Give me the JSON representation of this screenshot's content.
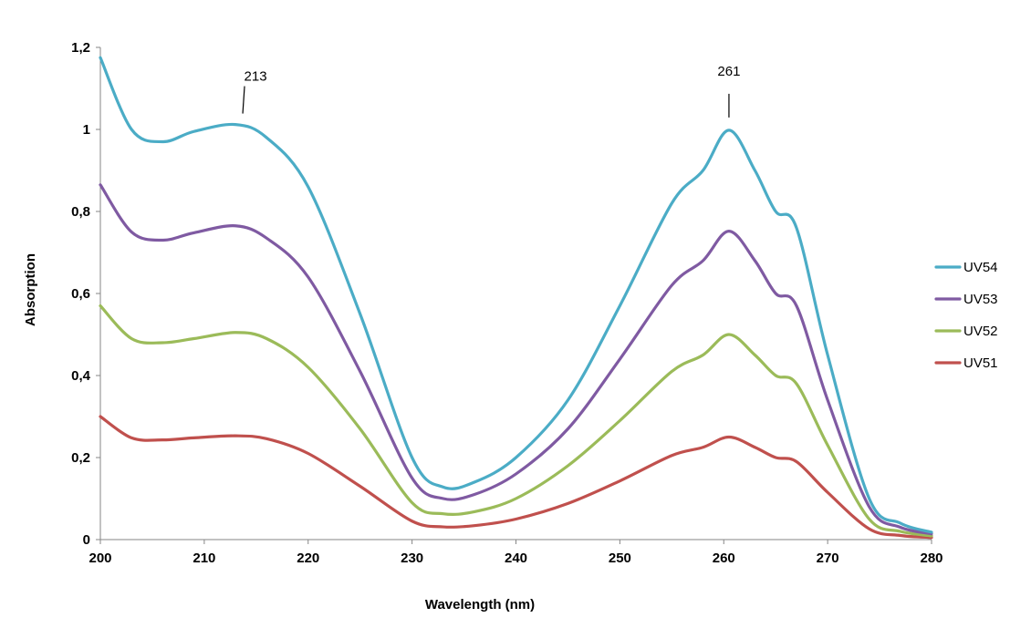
{
  "chart_data": {
    "type": "line",
    "title": "",
    "xlabel": "Wavelength (nm)",
    "ylabel": "Absorption",
    "xlim": [
      200,
      280
    ],
    "ylim": [
      0,
      1.2
    ],
    "grid": false,
    "legend_position": "right",
    "x_ticks": [
      "200",
      "210",
      "220",
      "230",
      "240",
      "250",
      "260",
      "270",
      "280"
    ],
    "y_ticks": [
      "0",
      "0,2",
      "0,4",
      "0,6",
      "0,8",
      "1",
      "1,2"
    ],
    "x": [
      200,
      203,
      206,
      209,
      213,
      216,
      220,
      225,
      230,
      233,
      236,
      240,
      245,
      250,
      255,
      258,
      260.5,
      263,
      265,
      267,
      270,
      274,
      277,
      280
    ],
    "series": [
      {
        "name": "UV54",
        "color": "#4bacc6",
        "values": [
          1.175,
          1.0,
          0.97,
          0.995,
          1.012,
          0.98,
          0.86,
          0.55,
          0.2,
          0.128,
          0.14,
          0.2,
          0.34,
          0.57,
          0.82,
          0.9,
          0.998,
          0.9,
          0.8,
          0.76,
          0.45,
          0.1,
          0.04,
          0.018
        ]
      },
      {
        "name": "UV53",
        "color": "#7f5aa2",
        "values": [
          0.865,
          0.75,
          0.73,
          0.748,
          0.765,
          0.735,
          0.64,
          0.41,
          0.15,
          0.1,
          0.11,
          0.16,
          0.27,
          0.44,
          0.62,
          0.68,
          0.752,
          0.68,
          0.6,
          0.57,
          0.34,
          0.08,
          0.03,
          0.014
        ]
      },
      {
        "name": "UV52",
        "color": "#9bbb59",
        "values": [
          0.57,
          0.49,
          0.48,
          0.49,
          0.505,
          0.49,
          0.42,
          0.27,
          0.09,
          0.063,
          0.068,
          0.1,
          0.18,
          0.29,
          0.41,
          0.45,
          0.5,
          0.45,
          0.4,
          0.38,
          0.23,
          0.05,
          0.02,
          0.009
        ]
      },
      {
        "name": "UV51",
        "color": "#c0504d",
        "values": [
          0.3,
          0.248,
          0.243,
          0.248,
          0.253,
          0.246,
          0.21,
          0.13,
          0.045,
          0.031,
          0.034,
          0.05,
          0.088,
          0.143,
          0.205,
          0.225,
          0.25,
          0.225,
          0.2,
          0.19,
          0.115,
          0.026,
          0.01,
          0.005
        ]
      }
    ],
    "annotations": [
      {
        "text": "213",
        "x": 213,
        "y": 1.012
      },
      {
        "text": "261",
        "x": 260.5,
        "y": 0.998
      }
    ]
  }
}
